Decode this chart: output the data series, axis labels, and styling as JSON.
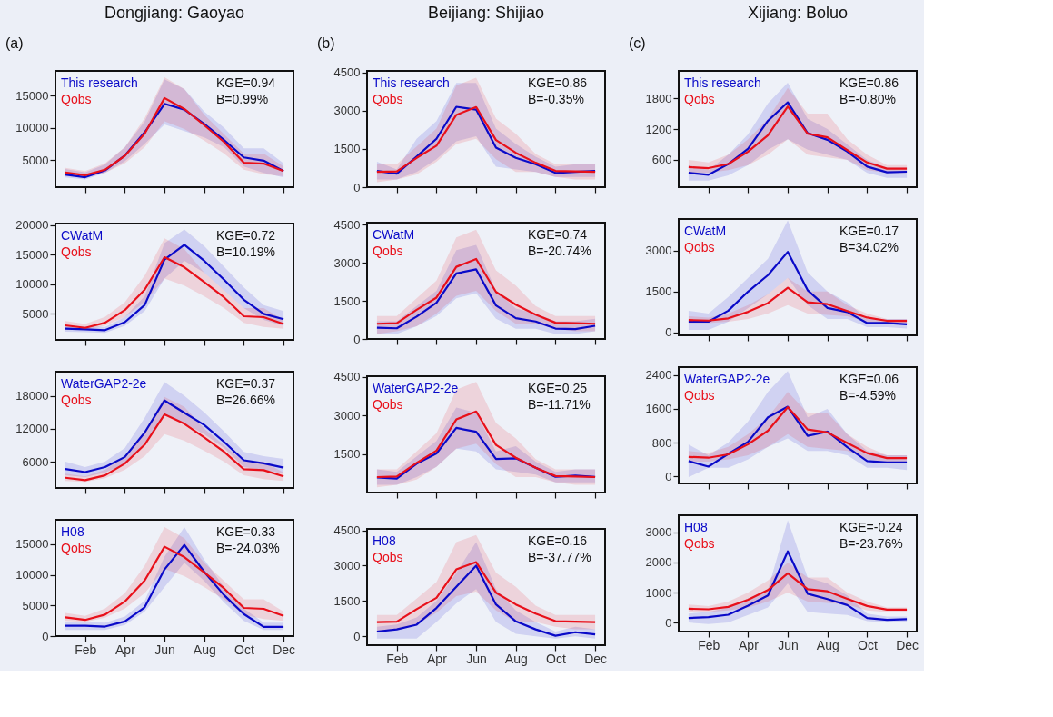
{
  "chart_data": [
    {
      "type": "line",
      "title": "Dongjiang: Gaoyao",
      "annotations": [
        "(a)",
        "KGE=0.94",
        "B=0.99%"
      ],
      "categories": [
        null,
        null,
        null,
        null,
        null,
        null,
        null,
        null,
        null,
        null,
        null,
        null
      ],
      "ylim": [
        800,
        18800
      ],
      "yticks": [
        5000,
        10000,
        15000
      ],
      "tick_labels": "y",
      "legend": "top left",
      "grid": false,
      "line_style": "solid",
      "series": [
        {
          "name": "This research",
          "color": "#0a0ac8",
          "values": [
            2760,
            2340,
            3400,
            5700,
            9300,
            13700,
            12800,
            10600,
            8100,
            5400,
            4900,
            3300
          ],
          "lower": [
            2300,
            2000,
            3000,
            4800,
            7500,
            10500,
            9500,
            8500,
            7000,
            4000,
            3000,
            2300
          ],
          "upper": [
            3600,
            3100,
            4300,
            7000,
            11000,
            17500,
            16000,
            12500,
            10000,
            6800,
            6800,
            4500
          ]
        },
        {
          "name": "Qobs",
          "color": "#e8101a",
          "values": [
            3060,
            2640,
            3500,
            5650,
            9100,
            14600,
            12900,
            10400,
            7800,
            4600,
            4450,
            3300
          ],
          "lower": [
            2500,
            2300,
            3000,
            4500,
            7000,
            11000,
            9800,
            8000,
            6000,
            3500,
            2800,
            2500
          ],
          "upper": [
            3800,
            3300,
            4500,
            7000,
            11500,
            17800,
            16000,
            12000,
            9000,
            6000,
            6000,
            4000
          ]
        }
      ]
    },
    {
      "type": "line",
      "annotations": [
        "KGE=0.72",
        "B=10.19%"
      ],
      "categories": [
        null,
        null,
        null,
        null,
        null,
        null,
        null,
        null,
        null,
        null,
        null,
        null
      ],
      "ylim": [
        600,
        20300
      ],
      "yticks": [
        5000,
        10000,
        15000,
        20000
      ],
      "tick_labels": "y",
      "legend": "top left",
      "grid": false,
      "line_style": "solid",
      "series": [
        {
          "name": "CWatM",
          "color": "#0a0ac8",
          "values": [
            2500,
            2400,
            2250,
            3600,
            6500,
            14200,
            16700,
            14000,
            10800,
            7400,
            5000,
            4100
          ],
          "lower": [
            2000,
            1900,
            1800,
            3000,
            5500,
            11000,
            14000,
            12000,
            9000,
            6000,
            4000,
            3000
          ],
          "upper": [
            3000,
            2900,
            2800,
            4500,
            8000,
            17000,
            19300,
            16500,
            13000,
            9500,
            6500,
            5500
          ]
        },
        {
          "name": "Qobs",
          "color": "#e8101a",
          "values": [
            3060,
            2640,
            3500,
            5650,
            9100,
            14600,
            12900,
            10400,
            7800,
            4600,
            4450,
            3300
          ],
          "lower": [
            2500,
            2300,
            3000,
            4500,
            7000,
            11000,
            9800,
            8000,
            6000,
            3500,
            2800,
            2500
          ],
          "upper": [
            3800,
            3300,
            4500,
            7000,
            11500,
            17800,
            16000,
            12000,
            9000,
            6000,
            6000,
            4000
          ]
        }
      ]
    },
    {
      "type": "line",
      "annotations": [
        "KGE=0.37",
        "B=26.66%"
      ],
      "categories": [
        null,
        null,
        null,
        null,
        null,
        null,
        null,
        null,
        null,
        null,
        null,
        null
      ],
      "ylim": [
        1200,
        22400
      ],
      "yticks": [
        6000,
        12000,
        18000
      ],
      "tick_labels": "y",
      "legend": "top left",
      "grid": false,
      "line_style": "solid",
      "series": [
        {
          "name": "WaterGAP2-2e",
          "color": "#0a0ac8",
          "values": [
            4660,
            4100,
            5000,
            6850,
            11300,
            17150,
            14900,
            12700,
            9600,
            6250,
            5700,
            4900
          ],
          "lower": [
            3500,
            3200,
            4000,
            5500,
            9500,
            14500,
            13000,
            11000,
            8500,
            5000,
            4500,
            3800
          ],
          "upper": [
            6000,
            5000,
            6000,
            8500,
            14000,
            20500,
            18000,
            15000,
            11500,
            7800,
            7000,
            6500
          ]
        },
        {
          "name": "Qobs",
          "color": "#e8101a",
          "values": [
            3060,
            2640,
            3500,
            5650,
            9100,
            14600,
            12900,
            10400,
            7800,
            4600,
            4450,
            3300
          ],
          "lower": [
            2500,
            2300,
            3000,
            4500,
            7000,
            11000,
            9800,
            8000,
            6000,
            3500,
            2800,
            2500
          ],
          "upper": [
            3800,
            3300,
            4500,
            7000,
            11500,
            17800,
            16000,
            12000,
            9000,
            6000,
            6000,
            4000
          ]
        }
      ]
    },
    {
      "type": "line",
      "annotations": [
        "KGE=0.33",
        "B=-24.03%"
      ],
      "categories": [
        null,
        "Feb",
        null,
        "Apr",
        null,
        "Jun",
        null,
        "Aug",
        null,
        "Oct",
        null,
        "Dec"
      ],
      "ylim": [
        0,
        19000
      ],
      "yticks": [
        0,
        5000,
        10000,
        15000
      ],
      "legend": "top left",
      "grid": false,
      "line_style": "solid",
      "series": [
        {
          "name": "H08",
          "color": "#0a0ac8",
          "values": [
            1700,
            1700,
            1550,
            2400,
            4700,
            10900,
            14900,
            10500,
            6700,
            3600,
            1500,
            1500
          ],
          "lower": [
            1000,
            1000,
            1000,
            1800,
            4000,
            8000,
            12000,
            9000,
            5500,
            2500,
            1000,
            1000
          ],
          "upper": [
            2300,
            2300,
            2200,
            3200,
            5800,
            13000,
            17800,
            12500,
            8000,
            4500,
            2200,
            2200
          ]
        },
        {
          "name": "Qobs",
          "color": "#e8101a",
          "values": [
            3060,
            2640,
            3500,
            5650,
            9100,
            14600,
            12900,
            10400,
            7800,
            4600,
            4450,
            3300
          ],
          "lower": [
            2500,
            2300,
            3000,
            4500,
            7000,
            11000,
            9800,
            8000,
            6000,
            3500,
            2800,
            2500
          ],
          "upper": [
            3800,
            3300,
            4500,
            7000,
            11500,
            17800,
            16000,
            12000,
            9000,
            6000,
            6000,
            4000
          ]
        }
      ]
    },
    {
      "type": "line",
      "title": "Beijiang: Shijiao",
      "annotations": [
        "(b)",
        "KGE=0.86",
        "B=-0.35%"
      ],
      "categories": [
        null,
        null,
        null,
        null,
        null,
        null,
        null,
        null,
        null,
        null,
        null,
        null
      ],
      "ylim": [
        0,
        4570
      ],
      "yticks": [
        0,
        1500,
        3000,
        4500
      ],
      "tick_labels": "y",
      "legend": "top left",
      "grid": false,
      "line_style": "solid",
      "series": [
        {
          "name": "This research",
          "color": "#0a0ac8",
          "values": [
            640,
            530,
            1200,
            1900,
            3160,
            3050,
            1550,
            1150,
            900,
            560,
            600,
            640
          ],
          "lower": [
            300,
            300,
            600,
            1100,
            1800,
            2000,
            800,
            700,
            600,
            400,
            400,
            400
          ],
          "upper": [
            1000,
            700,
            1900,
            2600,
            4100,
            4100,
            2300,
            1700,
            1200,
            800,
            900,
            900
          ]
        },
        {
          "name": "Qobs",
          "color": "#e8101a",
          "values": [
            600,
            620,
            1150,
            1630,
            2840,
            3150,
            1850,
            1350,
            960,
            640,
            620,
            600
          ],
          "lower": [
            200,
            300,
            500,
            1000,
            1700,
            1900,
            1100,
            600,
            600,
            400,
            300,
            300
          ],
          "upper": [
            900,
            900,
            1600,
            2300,
            4000,
            4300,
            2700,
            2100,
            1300,
            900,
            900,
            900
          ]
        }
      ]
    },
    {
      "type": "line",
      "annotations": [
        "KGE=0.74",
        "B=-20.74%"
      ],
      "categories": [
        null,
        null,
        null,
        null,
        null,
        null,
        null,
        null,
        null,
        null,
        null,
        null
      ],
      "ylim": [
        0,
        4580
      ],
      "yticks": [
        0,
        1500,
        3000,
        4500
      ],
      "tick_labels": "y",
      "legend": "top left",
      "grid": false,
      "line_style": "solid",
      "series": [
        {
          "name": "CWatM",
          "color": "#0a0ac8",
          "values": [
            440,
            420,
            880,
            1430,
            2580,
            2740,
            1320,
            820,
            690,
            410,
            390,
            520
          ],
          "lower": [
            200,
            200,
            500,
            900,
            1600,
            1800,
            800,
            400,
            400,
            200,
            200,
            300
          ],
          "upper": [
            700,
            700,
            1300,
            1900,
            3500,
            3700,
            1900,
            1200,
            1000,
            700,
            700,
            800
          ]
        },
        {
          "name": "Qobs",
          "color": "#e8101a",
          "values": [
            600,
            620,
            1150,
            1630,
            2840,
            3150,
            1850,
            1350,
            960,
            640,
            620,
            600
          ],
          "lower": [
            200,
            300,
            500,
            1000,
            1700,
            1900,
            1100,
            600,
            600,
            400,
            300,
            300
          ],
          "upper": [
            900,
            900,
            1600,
            2300,
            4000,
            4300,
            2700,
            2100,
            1300,
            900,
            900,
            900
          ]
        }
      ]
    },
    {
      "type": "line",
      "annotations": [
        "KGE=0.25",
        "B=-11.71%"
      ],
      "categories": [
        null,
        null,
        null,
        null,
        null,
        null,
        null,
        null,
        null,
        null,
        null,
        null
      ],
      "ylim": [
        0,
        4520
      ],
      "yticks": [
        1500,
        3000,
        4500
      ],
      "tick_labels": "y",
      "legend": "top left",
      "grid": false,
      "line_style": "solid",
      "series": [
        {
          "name": "WaterGAP2-2e",
          "color": "#0a0ac8",
          "values": [
            590,
            540,
            1120,
            1520,
            2510,
            2360,
            1300,
            1330,
            960,
            610,
            660,
            610
          ],
          "lower": [
            300,
            300,
            600,
            1000,
            1700,
            1600,
            900,
            800,
            700,
            400,
            400,
            400
          ],
          "upper": [
            900,
            800,
            1400,
            2000,
            3300,
            3100,
            1600,
            1800,
            1200,
            800,
            900,
            900
          ]
        },
        {
          "name": "Qobs",
          "color": "#e8101a",
          "values": [
            600,
            620,
            1150,
            1630,
            2840,
            3150,
            1850,
            1350,
            960,
            640,
            620,
            600
          ],
          "lower": [
            200,
            300,
            500,
            1000,
            1700,
            1900,
            1100,
            600,
            600,
            400,
            300,
            300
          ],
          "upper": [
            900,
            900,
            1600,
            2300,
            4000,
            4300,
            2700,
            2100,
            1300,
            900,
            900,
            900
          ]
        }
      ]
    },
    {
      "type": "line",
      "annotations": [
        "KGE=0.16",
        "B=-37.77%"
      ],
      "categories": [
        null,
        "Feb",
        null,
        "Apr",
        null,
        "Jun",
        null,
        "Aug",
        null,
        "Oct",
        null,
        "Dec"
      ],
      "ylim": [
        -380,
        4560
      ],
      "yticks": [
        0,
        1500,
        3000,
        4500
      ],
      "legend": "top left",
      "grid": false,
      "line_style": "solid",
      "series": [
        {
          "name": "H08",
          "color": "#0a0ac8",
          "values": [
            200,
            290,
            490,
            1200,
            2100,
            3000,
            1350,
            630,
            290,
            20,
            170,
            80
          ],
          "lower": [
            -100,
            -100,
            -100,
            600,
            1400,
            2000,
            600,
            100,
            0,
            -100,
            0,
            -100
          ],
          "upper": [
            400,
            500,
            800,
            1500,
            2700,
            4000,
            2000,
            1100,
            600,
            200,
            400,
            300
          ]
        },
        {
          "name": "Qobs",
          "color": "#e8101a",
          "values": [
            600,
            620,
            1150,
            1630,
            2840,
            3150,
            1850,
            1350,
            960,
            640,
            620,
            600
          ],
          "lower": [
            200,
            300,
            500,
            1000,
            1700,
            1900,
            1100,
            600,
            600,
            400,
            300,
            300
          ],
          "upper": [
            900,
            900,
            1600,
            2300,
            4000,
            4300,
            2700,
            2100,
            1300,
            900,
            900,
            900
          ]
        }
      ]
    },
    {
      "type": "line",
      "title": "Xijiang: Boluo",
      "annotations": [
        "(c)",
        "KGE=0.86",
        "B=-0.80%"
      ],
      "categories": [
        null,
        null,
        null,
        null,
        null,
        null,
        null,
        null,
        null,
        null,
        null,
        null
      ],
      "ylim": [
        70,
        2330
      ],
      "yticks": [
        600,
        1200,
        1800
      ],
      "tick_labels": "y",
      "legend": "top left",
      "grid": false,
      "line_style": "solid",
      "series": [
        {
          "name": "This research",
          "color": "#0a0ac8",
          "values": [
            350,
            310,
            520,
            820,
            1360,
            1720,
            1120,
            990,
            760,
            470,
            360,
            370
          ],
          "lower": [
            200,
            200,
            300,
            500,
            800,
            1000,
            800,
            700,
            600,
            350,
            250,
            250
          ],
          "upper": [
            500,
            400,
            700,
            1100,
            1700,
            2100,
            1400,
            1200,
            900,
            600,
            450,
            450
          ]
        },
        {
          "name": "Qobs",
          "color": "#e8101a",
          "values": [
            460,
            440,
            520,
            760,
            1080,
            1640,
            1110,
            1040,
            790,
            550,
            430,
            430
          ],
          "lower": [
            350,
            350,
            400,
            500,
            700,
            1000,
            700,
            650,
            600,
            400,
            350,
            350
          ],
          "upper": [
            600,
            550,
            700,
            1000,
            1400,
            2000,
            1500,
            1500,
            1000,
            700,
            500,
            500
          ]
        }
      ]
    },
    {
      "type": "line",
      "annotations": [
        "KGE=0.17",
        "B=34.02%"
      ],
      "categories": [
        null,
        null,
        null,
        null,
        null,
        null,
        null,
        null,
        null,
        null,
        null,
        null
      ],
      "ylim": [
        -100,
        4150
      ],
      "yticks": [
        0,
        1500,
        3000
      ],
      "tick_labels": "y",
      "legend": "top left",
      "grid": false,
      "line_style": "solid",
      "series": [
        {
          "name": "CWatM",
          "color": "#0a0ac8",
          "values": [
            400,
            400,
            800,
            1500,
            2100,
            2950,
            1550,
            900,
            750,
            350,
            350,
            300
          ],
          "lower": [
            100,
            100,
            400,
            900,
            1400,
            2000,
            1000,
            500,
            500,
            200,
            200,
            150
          ],
          "upper": [
            800,
            700,
            1300,
            2000,
            2700,
            4100,
            2200,
            1500,
            1100,
            500,
            500,
            500
          ]
        },
        {
          "name": "Qobs",
          "color": "#e8101a",
          "values": [
            460,
            440,
            520,
            760,
            1080,
            1640,
            1110,
            1040,
            790,
            550,
            430,
            430
          ],
          "lower": [
            350,
            350,
            400,
            500,
            700,
            1000,
            700,
            650,
            600,
            400,
            350,
            350
          ],
          "upper": [
            600,
            550,
            700,
            1000,
            1400,
            2000,
            1500,
            1500,
            1000,
            700,
            500,
            500
          ]
        }
      ]
    },
    {
      "type": "line",
      "annotations": [
        "KGE=0.06",
        "B=-4.59%"
      ],
      "categories": [
        null,
        null,
        null,
        null,
        null,
        null,
        null,
        null,
        null,
        null,
        null,
        null
      ],
      "ylim": [
        -170,
        2590
      ],
      "yticks": [
        0,
        800,
        1600,
        2400
      ],
      "tick_labels": "y",
      "legend": "top left",
      "grid": false,
      "line_style": "solid",
      "series": [
        {
          "name": "WaterGAP2-2e",
          "color": "#0a0ac8",
          "values": [
            360,
            230,
            530,
            820,
            1400,
            1650,
            960,
            1060,
            690,
            360,
            330,
            330
          ],
          "lower": [
            -20,
            200,
            200,
            400,
            700,
            900,
            600,
            600,
            500,
            200,
            200,
            150
          ],
          "upper": [
            750,
            500,
            800,
            1300,
            2000,
            2500,
            1400,
            1600,
            1000,
            600,
            500,
            500
          ]
        },
        {
          "name": "Qobs",
          "color": "#e8101a",
          "values": [
            460,
            440,
            520,
            760,
            1080,
            1640,
            1110,
            1040,
            790,
            550,
            430,
            430
          ],
          "lower": [
            350,
            350,
            400,
            500,
            700,
            1000,
            700,
            650,
            600,
            400,
            350,
            350
          ],
          "upper": [
            600,
            550,
            700,
            1000,
            1400,
            2000,
            1500,
            1500,
            1000,
            700,
            500,
            500
          ]
        }
      ]
    },
    {
      "type": "line",
      "annotations": [
        "KGE=-0.24",
        "B=-23.76%"
      ],
      "categories": [
        null,
        "Feb",
        null,
        "Apr",
        null,
        "Jun",
        null,
        "Aug",
        null,
        "Oct",
        null,
        "Dec"
      ],
      "ylim": [
        -300,
        3570
      ],
      "yticks": [
        0,
        1000,
        2000,
        3000
      ],
      "legend": "top left",
      "grid": false,
      "line_style": "solid",
      "series": [
        {
          "name": "H08",
          "color": "#0a0ac8",
          "values": [
            150,
            180,
            260,
            560,
            900,
            2370,
            960,
            780,
            580,
            150,
            90,
            110
          ],
          "lower": [
            0,
            -50,
            0,
            250,
            500,
            1300,
            350,
            300,
            250,
            50,
            0,
            0
          ],
          "upper": [
            300,
            350,
            500,
            800,
            1100,
            3400,
            1500,
            1300,
            900,
            300,
            200,
            200
          ]
        },
        {
          "name": "Qobs",
          "color": "#e8101a",
          "values": [
            460,
            440,
            520,
            760,
            1080,
            1640,
            1110,
            1040,
            790,
            550,
            430,
            430
          ],
          "lower": [
            350,
            350,
            400,
            500,
            700,
            1000,
            700,
            650,
            600,
            400,
            350,
            350
          ],
          "upper": [
            600,
            550,
            700,
            1000,
            1400,
            2000,
            1500,
            1500,
            1000,
            700,
            500,
            500
          ]
        }
      ]
    }
  ]
}
